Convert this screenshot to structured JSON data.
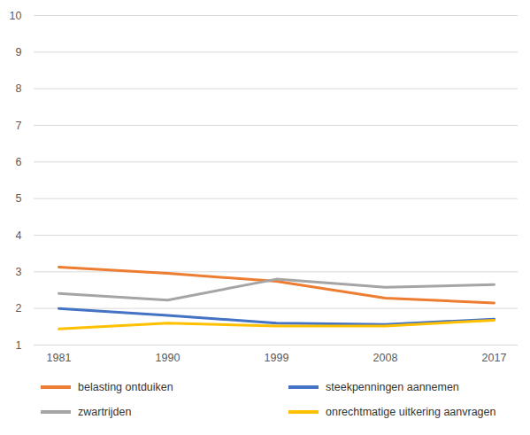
{
  "chart_data": {
    "type": "line",
    "categories": [
      "1981",
      "1990",
      "1999",
      "2008",
      "2017"
    ],
    "series": [
      {
        "name": "belasting ontduiken",
        "color": "#ED7D31",
        "values": [
          3.13,
          2.96,
          2.74,
          2.28,
          2.15
        ]
      },
      {
        "name": "steekpenningen aannemen",
        "color": "#4472C4",
        "values": [
          2.0,
          1.81,
          1.6,
          1.56,
          1.71
        ]
      },
      {
        "name": "zwartrijden",
        "color": "#A5A5A5",
        "values": [
          2.41,
          2.23,
          2.8,
          2.58,
          2.65
        ]
      },
      {
        "name": "onrechtmatige uitkering aanvragen",
        "color": "#FFC000",
        "values": [
          1.44,
          1.6,
          1.52,
          1.52,
          1.68
        ]
      }
    ],
    "ylim": [
      1,
      10
    ],
    "yticks": [
      1,
      2,
      3,
      4,
      5,
      6,
      7,
      8,
      9,
      10
    ],
    "grid": true,
    "legend": "bottom"
  }
}
